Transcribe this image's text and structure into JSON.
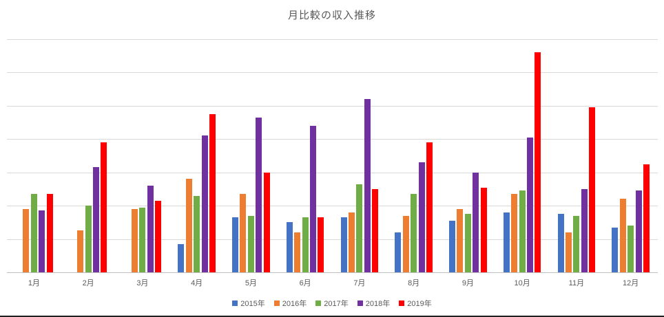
{
  "chart_data": {
    "type": "bar",
    "title": "月比較の収入推移",
    "categories": [
      "1月",
      "2月",
      "3月",
      "4月",
      "5月",
      "6月",
      "7月",
      "8月",
      "9月",
      "10月",
      "11月",
      "12月"
    ],
    "series": [
      {
        "name": "2015年",
        "color": "#4472C4",
        "values": [
          0,
          0,
          0,
          8.5,
          16.5,
          15,
          16.5,
          12,
          15.5,
          18,
          17.5,
          13.5
        ]
      },
      {
        "name": "2016年",
        "color": "#ED7D31",
        "values": [
          19,
          12.5,
          19,
          28,
          23.5,
          12,
          18,
          17,
          19,
          23.5,
          12,
          22
        ]
      },
      {
        "name": "2017年",
        "color": "#70AD47",
        "values": [
          23.5,
          20,
          19.5,
          23,
          17,
          16.5,
          26.5,
          23.5,
          17.5,
          24.5,
          17,
          14
        ]
      },
      {
        "name": "2018年",
        "color": "#7030A0",
        "values": [
          18.5,
          31.5,
          26,
          41,
          46.5,
          44,
          52,
          33,
          30,
          40.5,
          25,
          24.5
        ]
      },
      {
        "name": "2019年",
        "color": "#FF0000",
        "values": [
          23.5,
          39,
          21.5,
          47.5,
          30,
          16.5,
          25,
          39,
          25.5,
          66,
          49.5,
          32.5
        ]
      }
    ],
    "xlabel": "",
    "ylabel": "",
    "ylim": [
      0,
      70
    ],
    "gridline_interval": 10,
    "grid": true,
    "legend_position": "bottom",
    "colors": {
      "title_text": "#595959",
      "axis_text": "#595959",
      "gridline": "#d9d9d9",
      "axis_line": "#bfbfbf",
      "background": "#ffffff"
    }
  }
}
